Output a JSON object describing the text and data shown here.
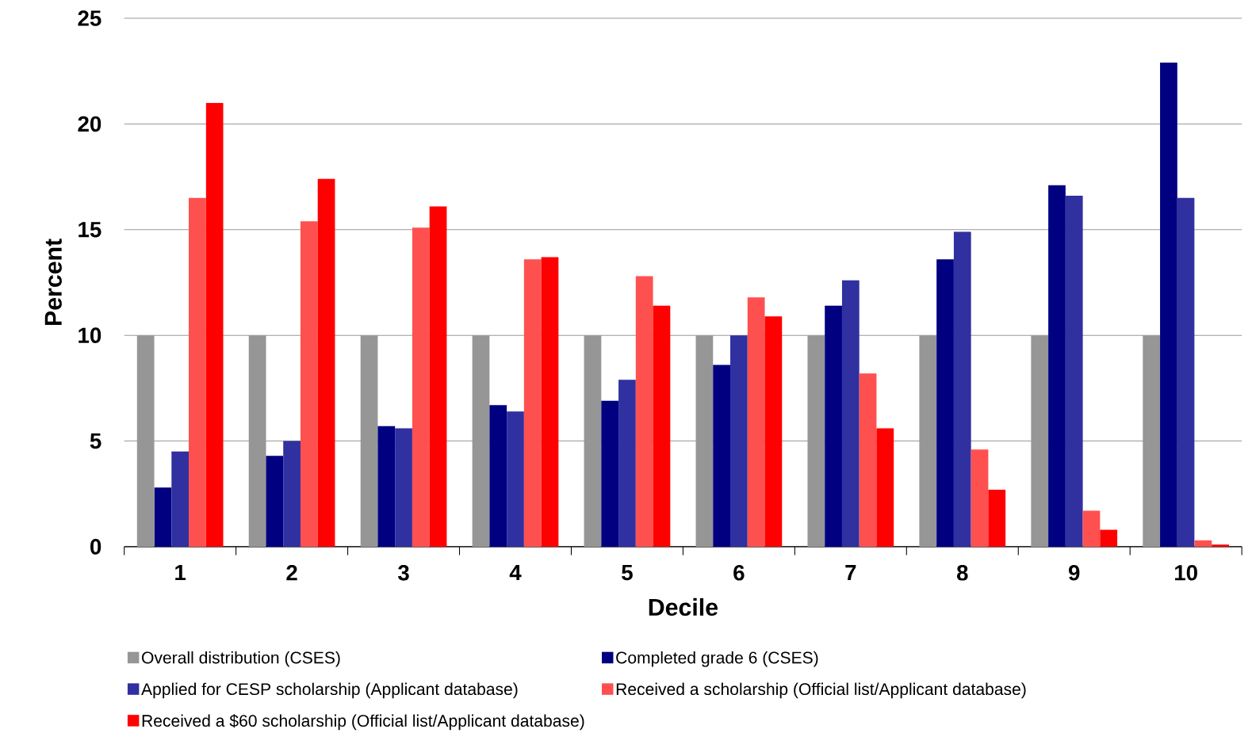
{
  "chart_data": {
    "type": "bar",
    "xlabel": "Decile",
    "ylabel": "Percent",
    "categories": [
      "1",
      "2",
      "3",
      "4",
      "5",
      "6",
      "7",
      "8",
      "9",
      "10"
    ],
    "series": [
      {
        "name": "Overall distribution (CSES)",
        "color": "#969696",
        "values": [
          10.0,
          10.0,
          10.0,
          10.0,
          10.0,
          10.0,
          10.0,
          10.0,
          10.0,
          10.0
        ]
      },
      {
        "name": "Completed grade 6 (CSES)",
        "color": "#000080",
        "values": [
          2.8,
          4.3,
          5.7,
          6.7,
          6.9,
          8.6,
          11.4,
          13.6,
          17.1,
          22.9
        ]
      },
      {
        "name": "Applied for CESP scholarship (Applicant database)",
        "color": "#3030a0",
        "values": [
          4.5,
          5.0,
          5.6,
          6.4,
          7.9,
          10.0,
          12.6,
          14.9,
          16.6,
          16.5
        ]
      },
      {
        "name": "Received a scholarship (Official list/Applicant database)",
        "color": "#ff5050",
        "values": [
          16.5,
          15.4,
          15.1,
          13.6,
          12.8,
          11.8,
          8.2,
          4.6,
          1.7,
          0.3
        ]
      },
      {
        "name": "Received a $60 scholarship (Official list/Applicant database)",
        "color": "#ff0000",
        "values": [
          21.0,
          17.4,
          16.1,
          13.7,
          11.4,
          10.9,
          5.6,
          2.7,
          0.8,
          0.1
        ]
      }
    ],
    "ylim": [
      0,
      25
    ],
    "yticks": [
      0,
      5,
      10,
      15,
      20,
      25
    ],
    "grid": "y",
    "legend": "bottom"
  }
}
